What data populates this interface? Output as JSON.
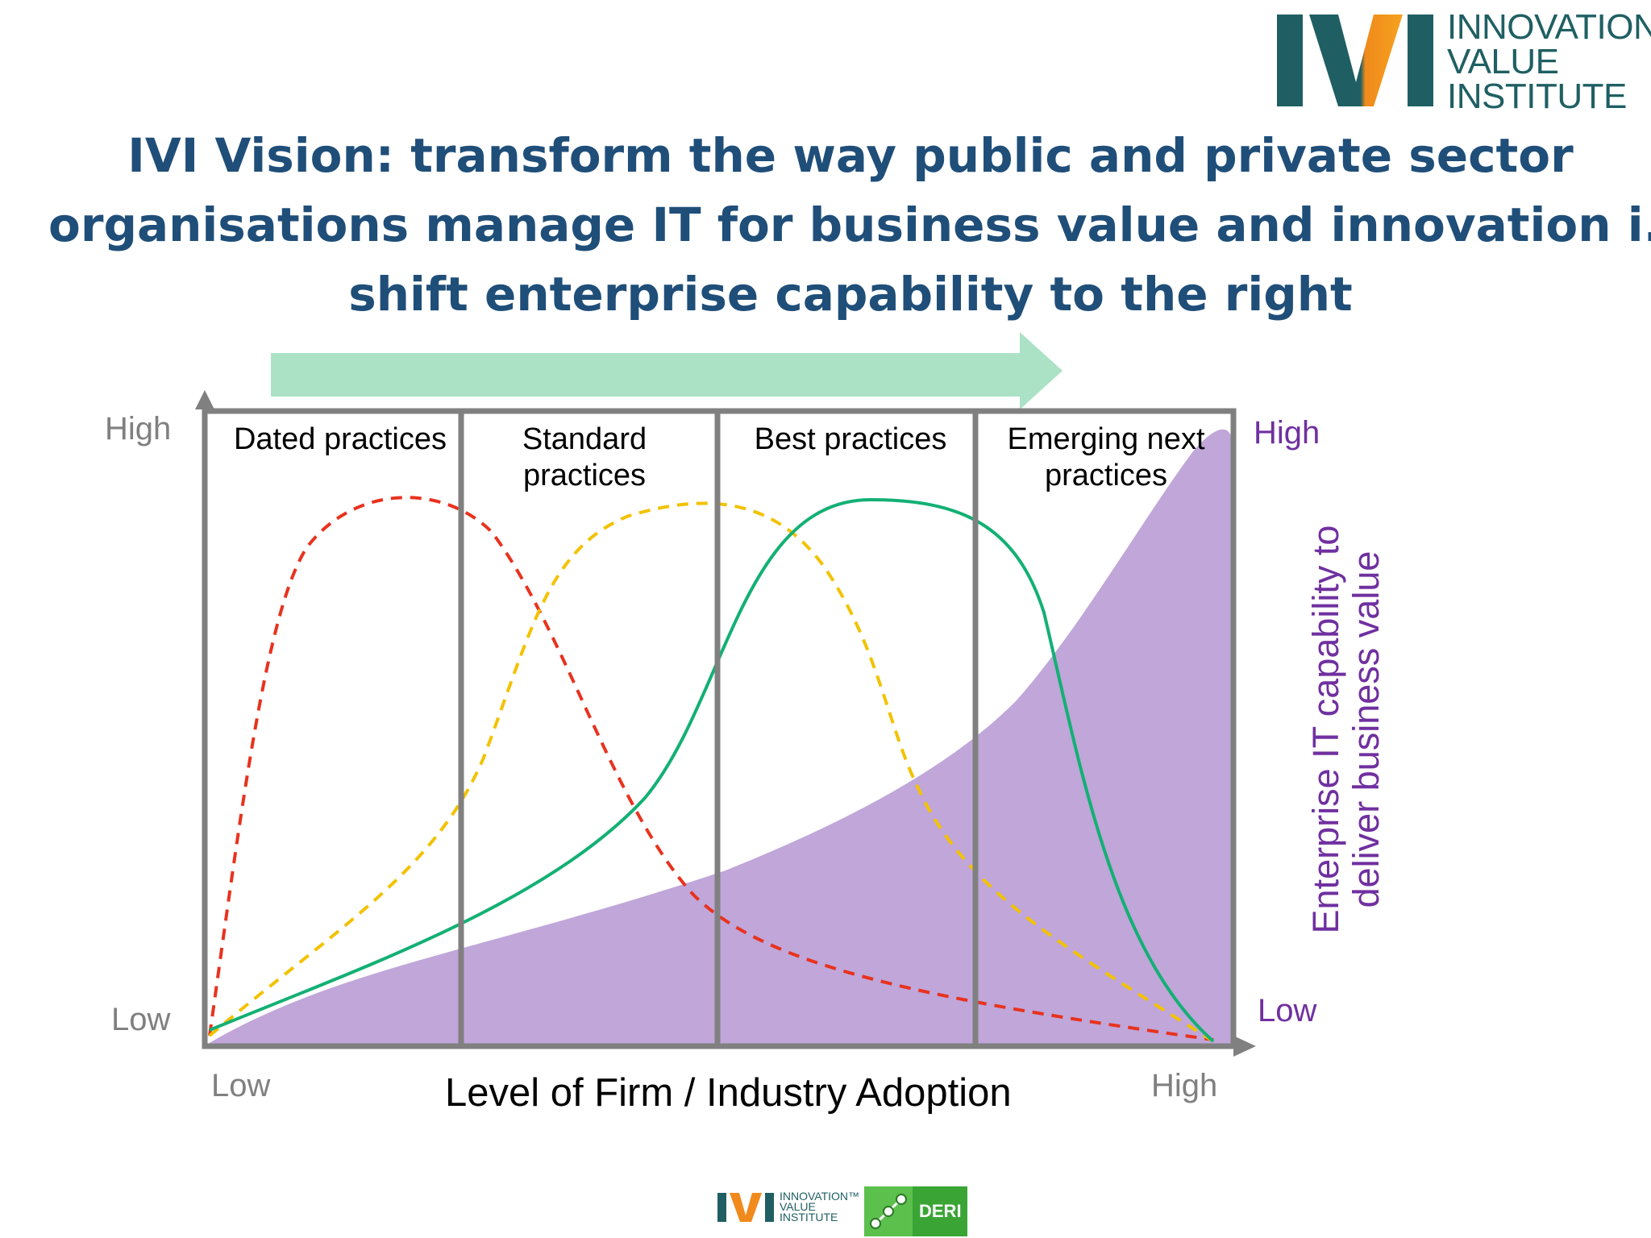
{
  "logo": {
    "mark": "IVI",
    "line1": "INNOVATION",
    "tm": "™",
    "line2": "VALUE",
    "line3": "INSTITUTE"
  },
  "title": {
    "line1": "IVI Vision: transform the way public and private sector",
    "line2": "organisations manage IT for business value and innovation i.e.",
    "line3": "shift enterprise capability to the right"
  },
  "diagram": {
    "columns": [
      {
        "label_line1": "Dated practices",
        "label_line2": ""
      },
      {
        "label_line1": "Standard",
        "label_line2": "practices"
      },
      {
        "label_line1": "Best practices",
        "label_line2": ""
      },
      {
        "label_line1": "Emerging next",
        "label_line2": "practices"
      }
    ],
    "left_axis": {
      "high": "High",
      "low": "Low"
    },
    "right_axis": {
      "high": "High",
      "low": "Low",
      "title_line1": "Enterprise IT capability to",
      "title_line2": "deliver business value"
    },
    "x_axis": {
      "low": "Low",
      "high": "High",
      "title": "Level of Firm / Industry Adoption"
    },
    "colors": {
      "frame": "#808080",
      "dated_curve": "#e8321e",
      "standard_curve": "#f2c200",
      "best_curve": "#13b074",
      "capability_area": "#b596d2",
      "shift_arrow": "#a6e0c2",
      "title_text": "#1f4e79",
      "purple_text": "#7030a0"
    }
  },
  "footer": {
    "ivi_mark": "IVI",
    "ivi_line1": "INNOVATION™",
    "ivi_line2": "VALUE",
    "ivi_line3": "INSTITUTE",
    "deri": "DERI"
  }
}
